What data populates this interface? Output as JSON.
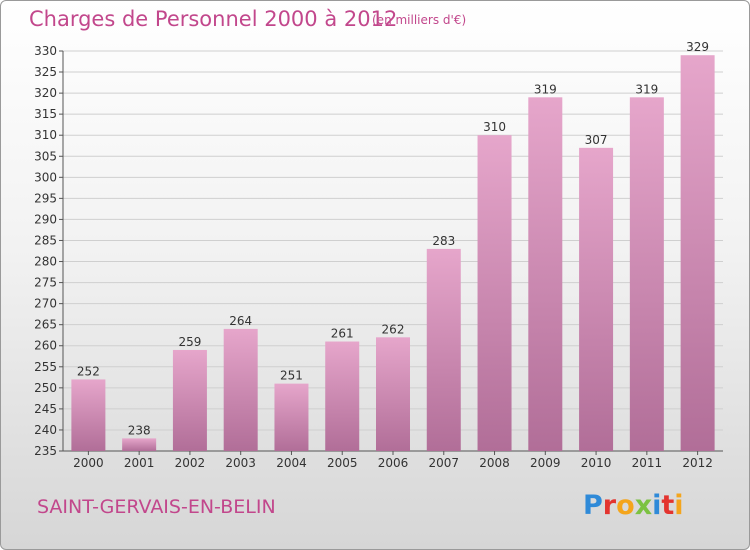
{
  "title": "Charges de Personnel 2000 à 2012",
  "subtitle": "(en milliers d'€)",
  "commune": "SAINT-GERVAIS-EN-BELIN",
  "logo": {
    "letters": [
      "P",
      "r",
      "o",
      "x",
      "i",
      "t",
      "i"
    ],
    "colors": [
      "#2f8ad8",
      "#e3342f",
      "#f4a51c",
      "#7cc242",
      "#2f8ad8",
      "#e3342f",
      "#f4a51c"
    ]
  },
  "colors": {
    "bar_light": "#e6a6cb",
    "bar_dark": "#b16e98",
    "accent": "#c2478c",
    "grid": "#cfcfcf"
  },
  "chart_data": {
    "type": "bar",
    "categories": [
      "2000",
      "2001",
      "2002",
      "2003",
      "2004",
      "2005",
      "2006",
      "2007",
      "2008",
      "2009",
      "2010",
      "2011",
      "2012"
    ],
    "values": [
      252,
      238,
      259,
      264,
      251,
      261,
      262,
      283,
      310,
      319,
      307,
      319,
      329
    ],
    "ylim": [
      235,
      330
    ],
    "ytick_step": 5,
    "grid": true,
    "data_labels": true
  }
}
